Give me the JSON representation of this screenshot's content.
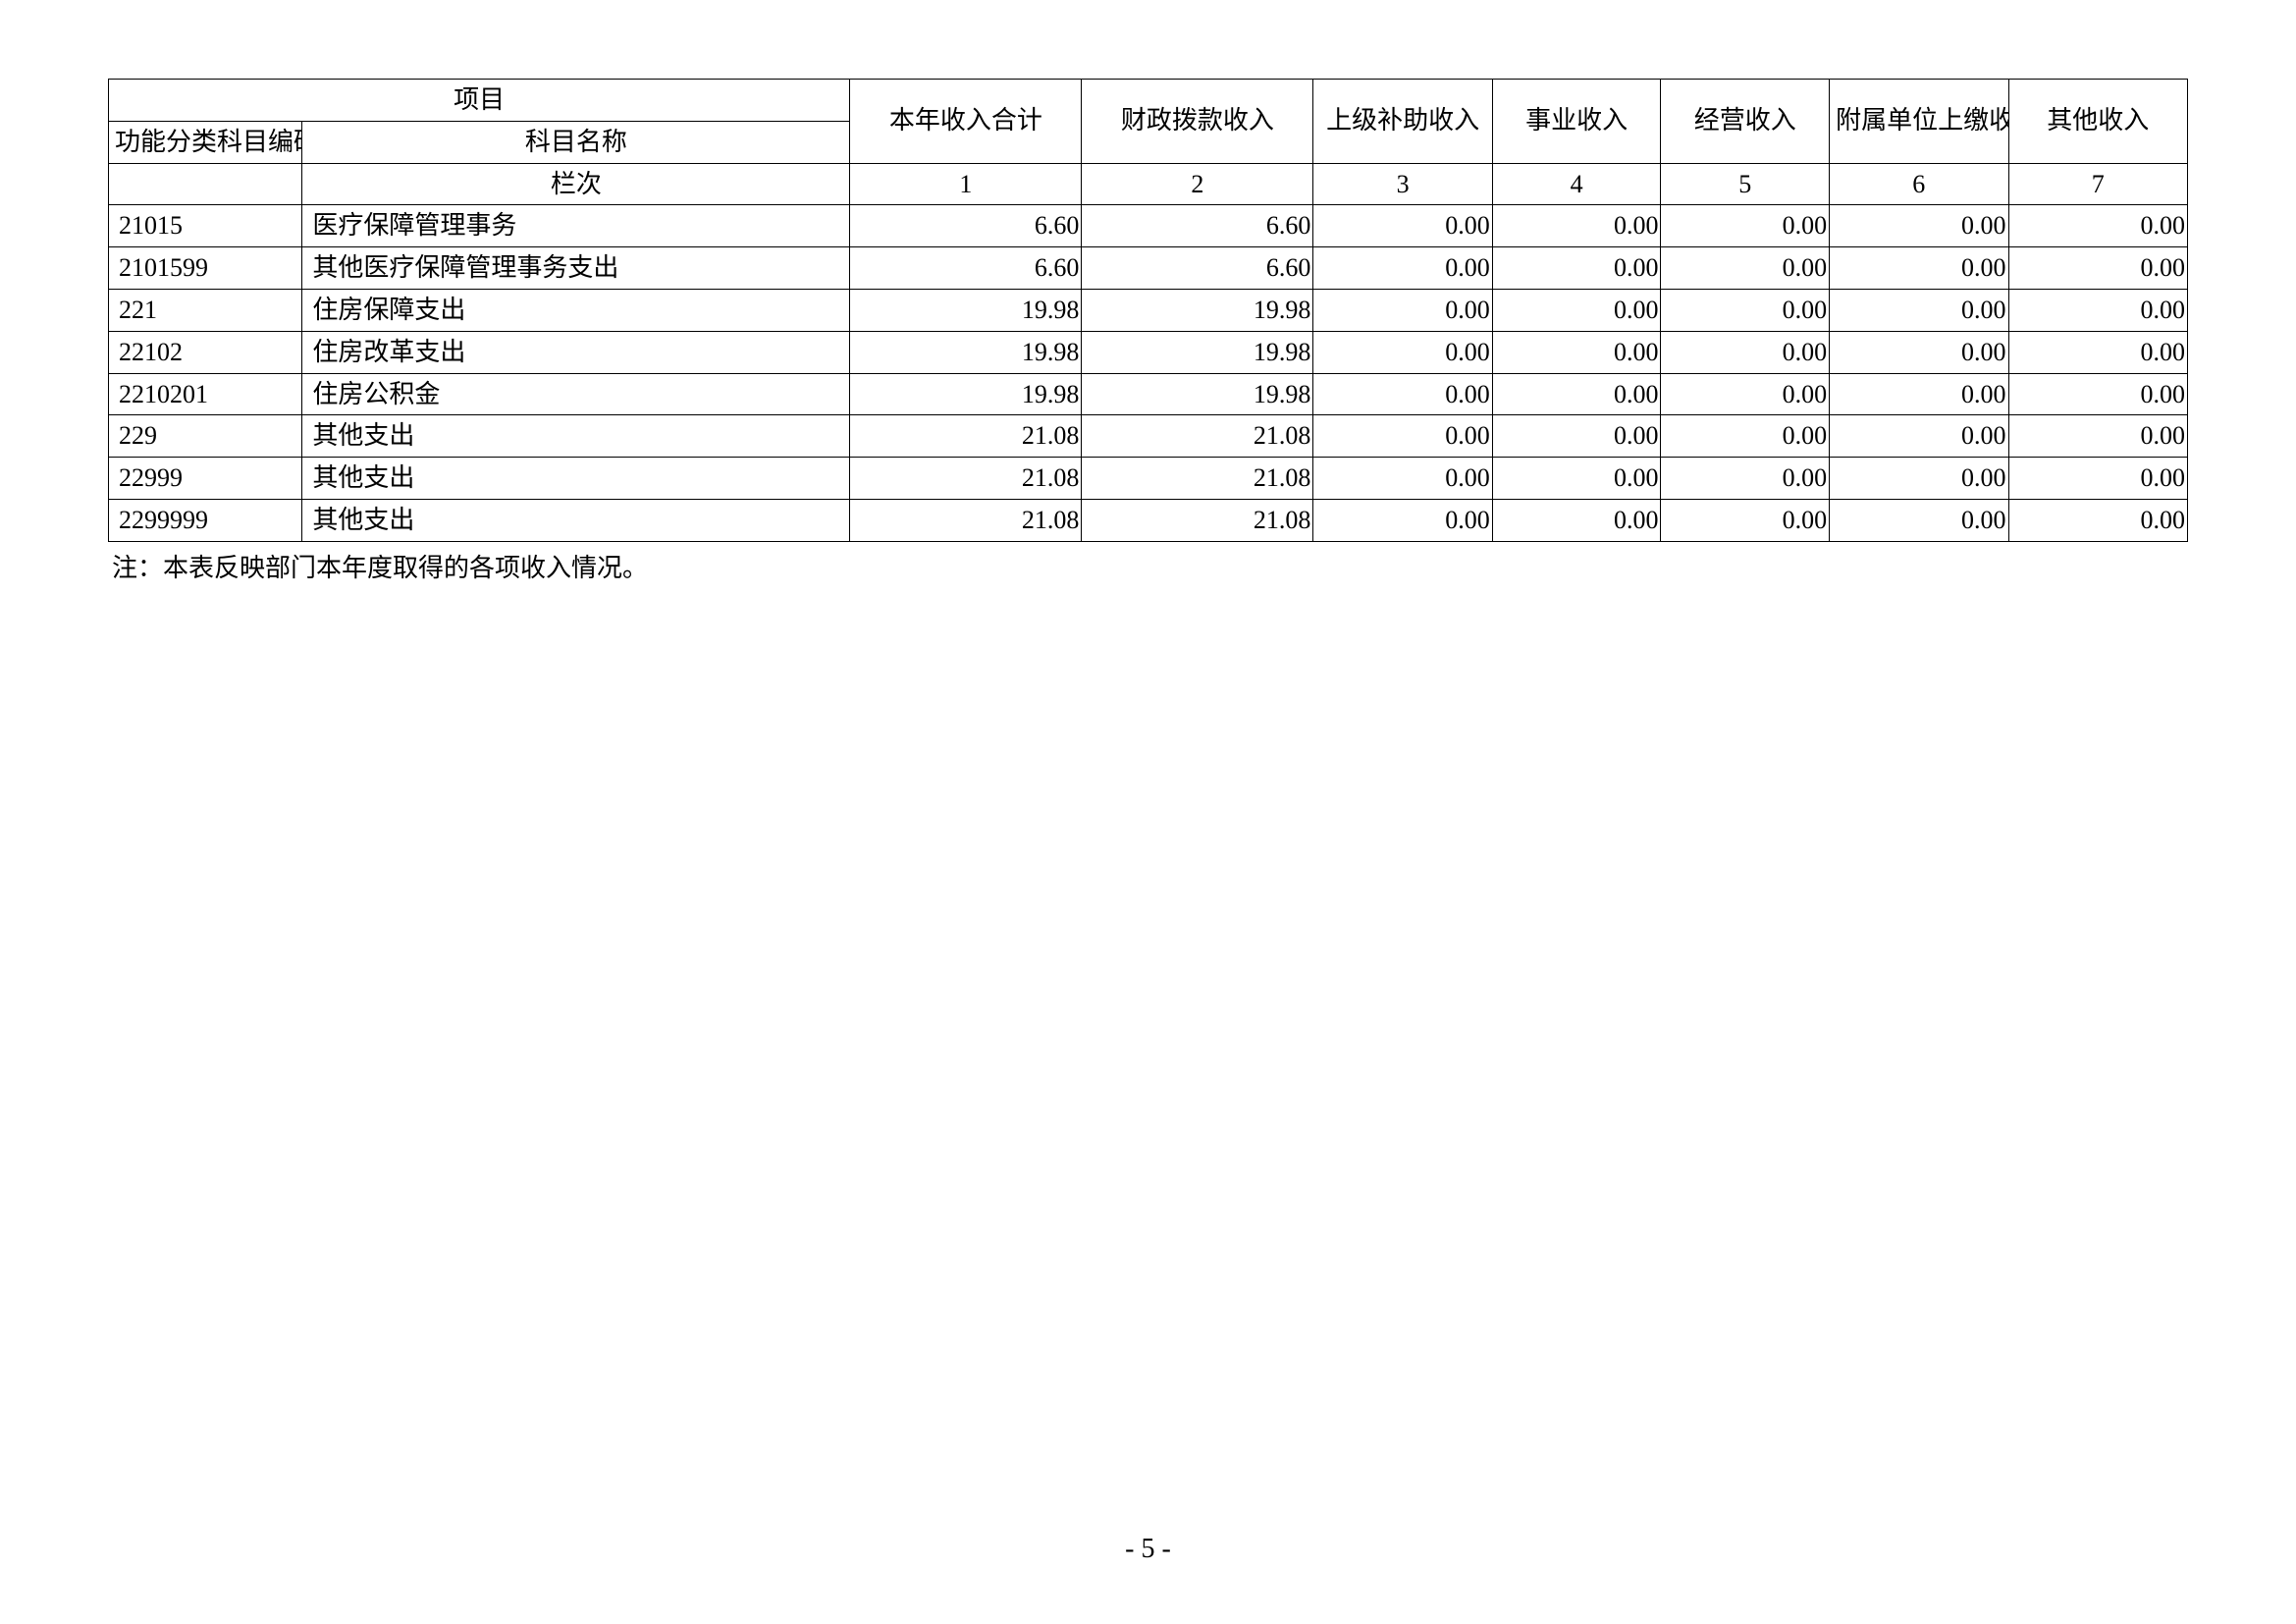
{
  "table": {
    "header": {
      "project": "项目",
      "code": "功能分类科目编码",
      "name": "科目名称",
      "cols": [
        "本年收入合计",
        "财政拨款收入",
        "上级补助收入",
        "事业收入",
        "经营收入",
        "附属单位上缴收入",
        "其他收入"
      ]
    },
    "lanci": {
      "label": "栏次",
      "nums": [
        "1",
        "2",
        "3",
        "4",
        "5",
        "6",
        "7"
      ]
    },
    "rows": [
      {
        "code": "21015",
        "name": "医疗保障管理事务",
        "vals": [
          "6.60",
          "6.60",
          "0.00",
          "0.00",
          "0.00",
          "0.00",
          "0.00"
        ]
      },
      {
        "code": "2101599",
        "name": "其他医疗保障管理事务支出",
        "vals": [
          "6.60",
          "6.60",
          "0.00",
          "0.00",
          "0.00",
          "0.00",
          "0.00"
        ]
      },
      {
        "code": "221",
        "name": "住房保障支出",
        "vals": [
          "19.98",
          "19.98",
          "0.00",
          "0.00",
          "0.00",
          "0.00",
          "0.00"
        ]
      },
      {
        "code": "22102",
        "name": "住房改革支出",
        "vals": [
          "19.98",
          "19.98",
          "0.00",
          "0.00",
          "0.00",
          "0.00",
          "0.00"
        ]
      },
      {
        "code": "2210201",
        "name": "住房公积金",
        "vals": [
          "19.98",
          "19.98",
          "0.00",
          "0.00",
          "0.00",
          "0.00",
          "0.00"
        ]
      },
      {
        "code": "229",
        "name": "其他支出",
        "vals": [
          "21.08",
          "21.08",
          "0.00",
          "0.00",
          "0.00",
          "0.00",
          "0.00"
        ]
      },
      {
        "code": "22999",
        "name": "其他支出",
        "vals": [
          "21.08",
          "21.08",
          "0.00",
          "0.00",
          "0.00",
          "0.00",
          "0.00"
        ]
      },
      {
        "code": "2299999",
        "name": "其他支出",
        "vals": [
          "21.08",
          "21.08",
          "0.00",
          "0.00",
          "0.00",
          "0.00",
          "0.00"
        ]
      }
    ],
    "colWidthsPx": [
      184,
      520,
      220,
      220,
      170,
      160,
      160,
      170,
      170
    ],
    "borderColor": "#000000",
    "backgroundColor": "#ffffff",
    "fontSizePx": 26,
    "textColor": "#000000"
  },
  "footnote": "注：本表反映部门本年度取得的各项收入情况。",
  "pageNumber": "- 5 -"
}
